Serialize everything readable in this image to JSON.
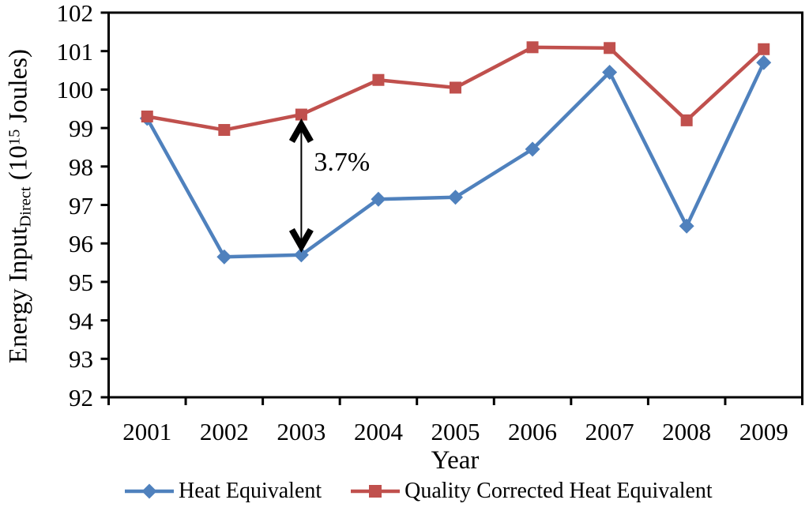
{
  "chart_data": {
    "type": "line",
    "title": "",
    "xlabel": "Year",
    "ylabel": {
      "main": "Energy Input",
      "sub": "Direct",
      "unit_pre": " (10",
      "unit_sup": "15",
      "unit_post": " Joules)"
    },
    "categories": [
      "2001",
      "2002",
      "2003",
      "2004",
      "2005",
      "2006",
      "2007",
      "2008",
      "2009"
    ],
    "series": [
      {
        "name": "Heat Equivalent",
        "marker": "diamond",
        "color": "#4F81BD",
        "values": [
          99.25,
          95.65,
          95.7,
          97.15,
          97.2,
          98.45,
          100.45,
          96.45,
          100.7
        ]
      },
      {
        "name": "Quality Corrected Heat Equivalent",
        "marker": "square",
        "color": "#C0504D",
        "values": [
          99.3,
          98.95,
          99.35,
          100.25,
          100.05,
          101.1,
          101.08,
          99.2,
          101.05
        ]
      }
    ],
    "ylim": [
      92,
      102
    ],
    "yticks": [
      "102",
      "101",
      "100",
      "99",
      "98",
      "97",
      "96",
      "95",
      "94",
      "93",
      "92"
    ],
    "grid": false,
    "legend_position": "bottom",
    "axis_color": "#000000",
    "background": "#FFFFFF",
    "annotation": {
      "label": "3.7%",
      "category": "2003",
      "from_value": 99.35,
      "to_value": 95.7,
      "arrow_color": "#000000"
    }
  }
}
